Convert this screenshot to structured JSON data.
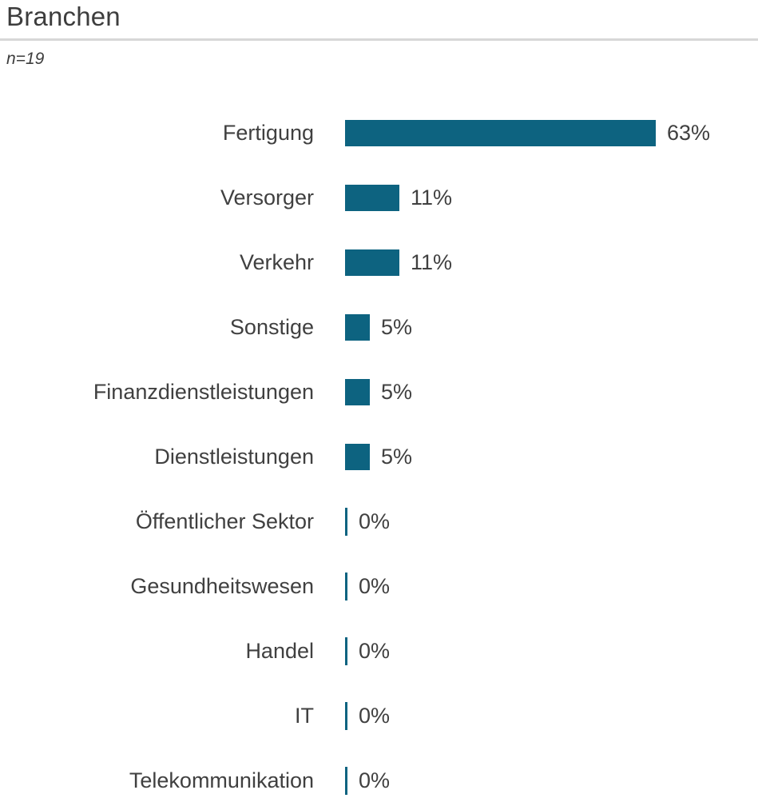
{
  "title": "Branchen",
  "subtitle": "n=19",
  "chart_data": {
    "type": "bar",
    "orientation": "horizontal",
    "title": "Branchen",
    "subtitle": "n=19",
    "unit": "%",
    "categories": [
      "Fertigung",
      "Versorger",
      "Verkehr",
      "Sonstige",
      "Finanzdienstleistungen",
      "Dienstleistungen",
      "Öffentlicher Sektor",
      "Gesundheitswesen",
      "Handel",
      "IT",
      "Telekommunikation"
    ],
    "values": [
      63,
      11,
      11,
      5,
      5,
      5,
      0,
      0,
      0,
      0,
      0
    ],
    "value_labels": [
      "63%",
      "11%",
      "11%",
      "5%",
      "5%",
      "5%",
      "0%",
      "0%",
      "0%",
      "0%",
      "0%"
    ],
    "bar_color": "#0d6380",
    "text_color": "#404040",
    "grid": false,
    "legend": false,
    "sort": "descending"
  }
}
